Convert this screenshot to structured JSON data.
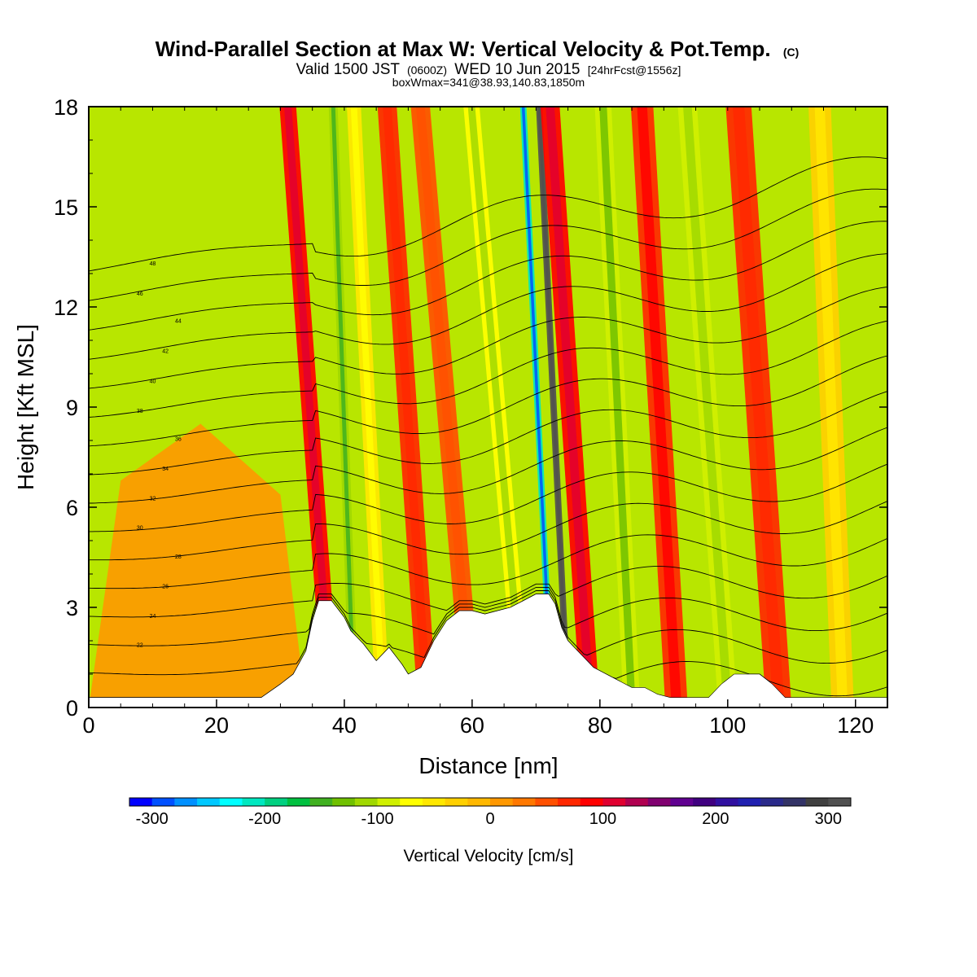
{
  "chart_data": {
    "type": "heatmap",
    "title": "Wind-Parallel Section at Max W: Vertical Velocity & Pot.Temp.",
    "title_mark": "(C)",
    "subtitle_parts": [
      "Valid 1500 JST",
      "(0600Z)",
      "WED 10 Jun 2015",
      "[24hrFcst@1556z]"
    ],
    "info": "boxWmax=341@38.93,140.83,1850m",
    "xlabel": "Distance [nm]",
    "ylabel": "Height [Kft MSL]",
    "xlim": [
      0,
      125
    ],
    "ylim": [
      0,
      18
    ],
    "x_ticks": [
      "0",
      "20",
      "40",
      "60",
      "80",
      "100",
      "120"
    ],
    "y_ticks": [
      "0",
      "3",
      "6",
      "9",
      "12",
      "15",
      "18"
    ],
    "colorbar": {
      "label": "Vertical Velocity [cm/s]",
      "range": [
        -320,
        320
      ],
      "step": 20,
      "tick_labels": [
        "-300",
        "-200",
        "-100",
        "0",
        "100",
        "200",
        "300"
      ],
      "tick_values": [
        -300,
        -200,
        -100,
        0,
        100,
        200,
        300
      ],
      "colors": [
        "#0000ff",
        "#0050ff",
        "#0090ff",
        "#00c8ff",
        "#00ffff",
        "#00e8c0",
        "#00d080",
        "#00c040",
        "#40b020",
        "#70c000",
        "#a0d800",
        "#d0f000",
        "#ffff00",
        "#ffe800",
        "#ffd000",
        "#ffb800",
        "#ff9800",
        "#ff7800",
        "#ff5000",
        "#ff2800",
        "#ff0000",
        "#e00030",
        "#b00050",
        "#800070",
        "#600090",
        "#400080",
        "#3010a0",
        "#2020b0",
        "#2a2a8a",
        "#333366",
        "#404040",
        "#505050"
      ]
    },
    "terrain_kft": {
      "x": [
        0,
        27,
        30,
        32,
        34,
        35,
        36,
        38,
        40,
        41,
        43,
        45,
        47,
        49,
        50,
        52,
        54,
        56,
        58,
        60,
        62,
        64,
        66,
        68,
        70,
        72,
        73,
        74,
        75,
        77,
        79,
        81,
        83,
        85,
        87,
        89,
        91,
        93,
        95,
        97,
        99,
        101,
        103,
        105,
        107,
        109,
        112,
        116,
        120,
        125
      ],
      "h": [
        0.3,
        0.3,
        0.7,
        1.0,
        1.7,
        2.6,
        3.2,
        3.2,
        2.7,
        2.3,
        1.9,
        1.4,
        1.8,
        1.3,
        1.0,
        1.2,
        2.0,
        2.6,
        2.9,
        2.9,
        2.8,
        2.9,
        3.0,
        3.2,
        3.4,
        3.4,
        3.1,
        2.4,
        2.0,
        1.6,
        1.2,
        1.0,
        0.8,
        0.6,
        0.6,
        0.4,
        0.3,
        0.3,
        0.3,
        0.3,
        0.7,
        1.0,
        1.0,
        1.0,
        0.7,
        0.3,
        0.3,
        0.3,
        0.3,
        0.3
      ]
    },
    "vertical_velocity_bands": [
      {
        "x": 38,
        "w": 2.6,
        "tilt": -0.38,
        "value": 80
      },
      {
        "x": 41.5,
        "w": 1.4,
        "tilt": -0.18,
        "value": -120
      },
      {
        "x": 46,
        "w": 2.2,
        "tilt": -0.25,
        "value": -60
      },
      {
        "x": 53,
        "w": 3.0,
        "tilt": -0.35,
        "value": 60
      },
      {
        "x": 60,
        "w": 3.0,
        "tilt": -0.45,
        "value": 40
      },
      {
        "x": 68,
        "w": 2.5,
        "tilt": -0.45,
        "value": -80
      },
      {
        "x": 72.5,
        "w": 1.0,
        "tilt": -0.25,
        "value": -220
      },
      {
        "x": 75,
        "w": 1.0,
        "tilt": -0.25,
        "value": 300
      },
      {
        "x": 78.5,
        "w": 3.0,
        "tilt": -0.35,
        "value": 90
      },
      {
        "x": 85,
        "w": 2.6,
        "tilt": -0.25,
        "value": -100
      },
      {
        "x": 92,
        "w": 3.5,
        "tilt": -0.3,
        "value": 70
      },
      {
        "x": 100,
        "w": 3.0,
        "tilt": -0.35,
        "value": -90
      },
      {
        "x": 108,
        "w": 4.0,
        "tilt": -0.35,
        "value": 60
      },
      {
        "x": 118,
        "w": 3.5,
        "tilt": -0.2,
        "value": -40
      }
    ],
    "low_level_yellow": {
      "x": [
        5,
        30
      ],
      "top_kft": 8.5,
      "value": 10
    },
    "theta_contours_c": [
      18,
      20,
      22,
      24,
      26,
      28,
      30,
      32,
      34,
      36,
      38,
      40,
      42,
      44,
      46,
      48
    ],
    "theta_contour_labels": [
      "22",
      "24",
      "26",
      "28",
      "30",
      "32",
      "34",
      "36",
      "38",
      "40",
      "42",
      "44",
      "46",
      "48"
    ]
  }
}
